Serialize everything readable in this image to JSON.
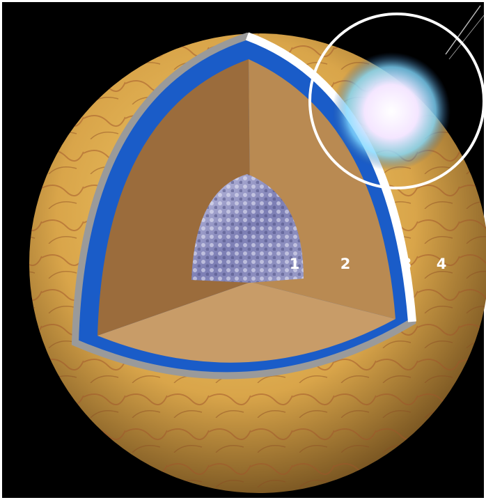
{
  "labels": [
    "1",
    "2",
    "3",
    "4"
  ]
}
